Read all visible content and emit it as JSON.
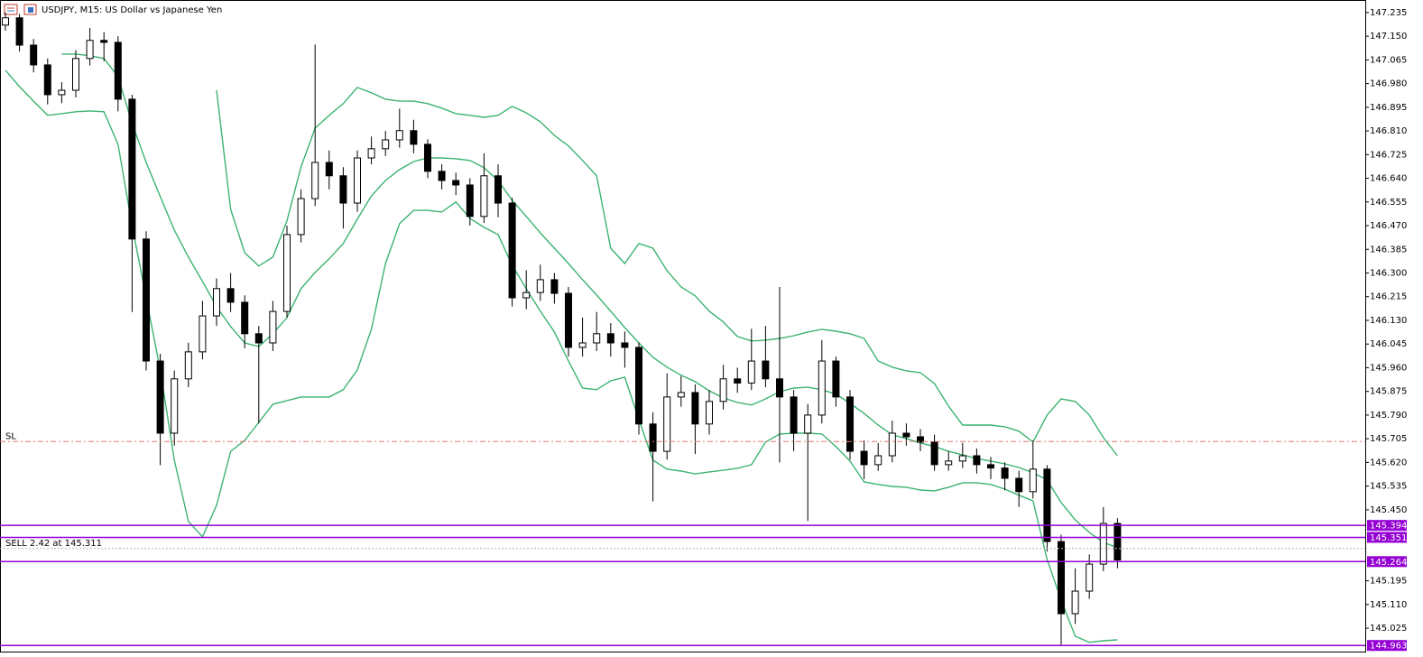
{
  "chart_data": {
    "type": "candlestick",
    "title": "USDJPY, M15:  US Dollar vs Japanese Yen",
    "ylim": [
      144.941,
      147.28
    ],
    "yticks": [
      147.235,
      {
        "value": 147.15,
        "label": "147.150"
      },
      147.065,
      {
        "value": 146.98,
        "label": "146.980"
      },
      146.895,
      {
        "value": 146.81,
        "label": "146.810"
      },
      146.725,
      {
        "value": 146.64,
        "label": "146.640"
      },
      146.555,
      {
        "value": 146.47,
        "label": "146.470"
      },
      146.385,
      {
        "value": 146.3,
        "label": "146.300"
      },
      146.215,
      {
        "value": 146.13,
        "label": "146.130"
      },
      146.045,
      {
        "value": 145.96,
        "label": "145.960"
      },
      145.875,
      {
        "value": 145.79,
        "label": "145.790"
      },
      145.705,
      {
        "value": 145.62,
        "label": "145.620"
      },
      145.535,
      {
        "value": 145.45,
        "label": "145.450"
      },
      145.195,
      {
        "value": 145.11,
        "label": "145.110"
      },
      145.025
    ],
    "up_color": "#ffffff",
    "down_color": "#000000",
    "open": [
      147.19,
      147.216,
      147.118,
      147.047,
      146.94,
      146.956,
      147.07,
      147.135,
      147.128,
      146.924,
      146.422,
      145.984,
      145.725,
      145.92,
      146.017,
      146.146,
      146.244,
      146.195,
      146.082,
      146.049,
      146.162,
      146.438,
      146.567,
      146.697,
      146.649,
      146.551,
      146.713,
      146.746,
      146.778,
      146.811,
      146.762,
      146.665,
      146.632,
      146.616,
      146.503,
      146.649,
      146.551,
      146.211,
      146.23,
      146.276,
      146.227,
      146.033,
      146.049,
      146.082,
      146.049,
      146.033,
      145.758,
      145.66,
      145.855,
      145.871,
      145.758,
      145.839,
      145.92,
      145.905,
      145.984,
      145.92,
      145.855,
      145.725,
      145.79,
      145.984,
      145.855,
      145.66,
      145.612,
      145.644,
      145.725,
      145.712,
      145.693,
      145.612,
      145.625,
      145.644,
      145.612,
      145.6,
      145.563,
      145.515,
      145.596,
      145.336,
      145.077,
      145.158,
      145.255,
      145.401
    ],
    "high": [
      147.235,
      147.23,
      147.14,
      147.07,
      146.985,
      147.1,
      147.18,
      147.165,
      147.15,
      146.94,
      146.45,
      146.01,
      145.95,
      146.05,
      146.2,
      146.28,
      146.3,
      146.22,
      146.11,
      146.2,
      146.47,
      146.6,
      147.12,
      146.74,
      146.68,
      146.74,
      146.79,
      146.81,
      146.89,
      146.85,
      146.78,
      146.69,
      146.66,
      146.64,
      146.73,
      146.69,
      146.57,
      146.31,
      146.33,
      146.3,
      146.25,
      146.14,
      146.16,
      146.12,
      146.09,
      146.05,
      145.8,
      145.94,
      145.93,
      145.9,
      145.88,
      145.97,
      145.96,
      146.1,
      146.11,
      146.25,
      145.88,
      145.83,
      146.06,
      146.0,
      145.88,
      145.7,
      145.69,
      145.77,
      145.76,
      145.74,
      145.72,
      145.66,
      145.69,
      145.67,
      145.64,
      145.62,
      145.59,
      145.7,
      145.61,
      145.36,
      145.24,
      145.29,
      145.46,
      145.42
    ],
    "low": [
      147.17,
      147.095,
      147.02,
      146.905,
      146.91,
      146.93,
      147.045,
      147.06,
      146.88,
      146.16,
      145.95,
      145.61,
      145.68,
      145.89,
      145.99,
      146.11,
      146.16,
      146.03,
      145.76,
      146.02,
      146.14,
      146.41,
      146.54,
      146.6,
      146.46,
      146.52,
      146.69,
      146.72,
      146.75,
      146.73,
      146.64,
      146.6,
      146.58,
      146.47,
      146.48,
      146.5,
      146.18,
      146.17,
      146.2,
      146.19,
      146.0,
      146.0,
      146.02,
      146.0,
      145.96,
      145.72,
      145.48,
      145.63,
      145.82,
      145.65,
      145.72,
      145.81,
      145.87,
      145.88,
      145.89,
      145.62,
      145.66,
      145.41,
      145.76,
      145.82,
      145.63,
      145.56,
      145.59,
      145.62,
      145.68,
      145.66,
      145.59,
      145.59,
      145.6,
      145.58,
      145.56,
      145.52,
      145.46,
      145.49,
      145.3,
      144.965,
      145.04,
      145.13,
      145.23,
      145.24
    ],
    "close": [
      147.216,
      147.118,
      147.047,
      146.94,
      146.956,
      147.07,
      147.135,
      147.128,
      146.924,
      146.422,
      145.984,
      145.725,
      145.92,
      146.017,
      146.146,
      146.244,
      146.195,
      146.082,
      146.049,
      146.162,
      146.438,
      146.567,
      146.697,
      146.649,
      146.551,
      146.713,
      146.746,
      146.778,
      146.811,
      146.762,
      146.665,
      146.632,
      146.616,
      146.503,
      146.649,
      146.551,
      146.211,
      146.23,
      146.276,
      146.227,
      146.033,
      146.049,
      146.082,
      146.049,
      146.033,
      145.758,
      145.66,
      145.855,
      145.871,
      145.758,
      145.839,
      145.92,
      145.905,
      145.984,
      145.92,
      145.855,
      145.725,
      145.79,
      145.984,
      145.855,
      145.66,
      145.612,
      145.644,
      145.725,
      145.712,
      145.693,
      145.612,
      145.625,
      145.644,
      145.612,
      145.6,
      145.563,
      145.515,
      145.596,
      145.336,
      145.077,
      145.158,
      145.255,
      145.401,
      145.27
    ],
    "bands": {
      "color": "#3cb371",
      "upper": [
        null,
        null,
        null,
        null,
        null,
        null,
        null,
        null,
        null,
        null,
        null,
        null,
        null,
        null,
        null,
        146.956,
        146.529,
        146.373,
        146.325,
        146.357,
        146.487,
        146.681,
        146.82,
        146.866,
        146.908,
        146.966,
        146.947,
        146.924,
        146.917,
        146.917,
        146.908,
        146.892,
        146.872,
        146.866,
        146.859,
        146.866,
        146.898,
        146.875,
        146.843,
        146.794,
        146.756,
        146.704,
        146.649,
        146.389,
        146.334,
        146.406,
        146.389,
        146.308,
        146.25,
        146.218,
        146.163,
        146.124,
        146.072,
        146.056,
        146.059,
        146.065,
        146.075,
        146.088,
        146.098,
        146.091,
        146.082,
        146.065,
        145.984,
        145.962,
        145.949,
        145.942,
        145.903,
        145.822,
        145.754,
        145.754,
        145.754,
        145.748,
        145.732,
        145.693,
        145.79,
        145.848,
        145.839,
        145.79,
        145.709,
        145.644
      ],
      "middle": [
        null,
        null,
        null,
        null,
        147.086,
        147.086,
        147.08,
        147.07,
        147.005,
        146.837,
        146.697,
        146.574,
        146.454,
        146.357,
        146.27,
        146.179,
        146.108,
        146.049,
        146.036,
        146.082,
        146.14,
        146.244,
        146.302,
        146.351,
        146.406,
        146.493,
        146.577,
        146.632,
        146.671,
        146.7,
        146.713,
        146.713,
        146.71,
        146.704,
        146.678,
        146.632,
        146.561,
        146.503,
        146.444,
        146.389,
        146.334,
        146.276,
        146.221,
        146.163,
        146.104,
        146.049,
        145.997,
        145.962,
        145.933,
        145.91,
        145.877,
        145.852,
        145.835,
        145.826,
        145.848,
        145.874,
        145.887,
        145.89,
        145.881,
        145.865,
        145.832,
        145.796,
        145.754,
        145.719,
        145.706,
        145.69,
        145.677,
        145.66,
        145.647,
        145.634,
        145.625,
        145.615,
        145.602,
        145.583,
        145.557,
        145.476,
        145.414,
        145.369,
        145.333,
        145.314
      ],
      "lower": [
        147.028,
        146.969,
        146.917,
        146.866,
        146.872,
        146.879,
        146.882,
        146.879,
        146.762,
        146.47,
        146.211,
        145.952,
        145.628,
        145.408,
        145.353,
        145.466,
        145.66,
        145.699,
        145.764,
        145.829,
        145.842,
        145.855,
        145.855,
        145.855,
        145.881,
        145.952,
        146.098,
        146.334,
        146.477,
        146.525,
        146.525,
        146.519,
        146.555,
        146.496,
        146.464,
        146.438,
        146.328,
        146.244,
        146.163,
        146.088,
        145.984,
        145.887,
        145.881,
        145.913,
        145.926,
        145.774,
        145.628,
        145.596,
        145.589,
        145.579,
        145.586,
        145.592,
        145.599,
        145.612,
        145.693,
        145.722,
        145.725,
        145.725,
        145.722,
        145.677,
        145.625,
        145.55,
        145.541,
        145.534,
        145.531,
        145.521,
        145.518,
        145.531,
        145.547,
        145.547,
        145.541,
        145.524,
        145.502,
        145.482,
        145.272,
        145.126,
        144.996,
        144.974,
        144.98,
        144.983
      ]
    },
    "levels": [
      {
        "value": 145.394,
        "color": "#9400d3"
      },
      {
        "value": 145.351,
        "color": "#9400d3"
      },
      {
        "value": 145.264,
        "color": "#9400d3"
      },
      {
        "value": 144.963,
        "color": "#9400d3"
      }
    ],
    "order_lines": [
      {
        "name": "SL",
        "value": 145.695,
        "color": "#e8756b"
      },
      {
        "name": "SELL 2.42 at 145.311",
        "value": 145.311,
        "color": "#b0b0b0"
      }
    ]
  }
}
